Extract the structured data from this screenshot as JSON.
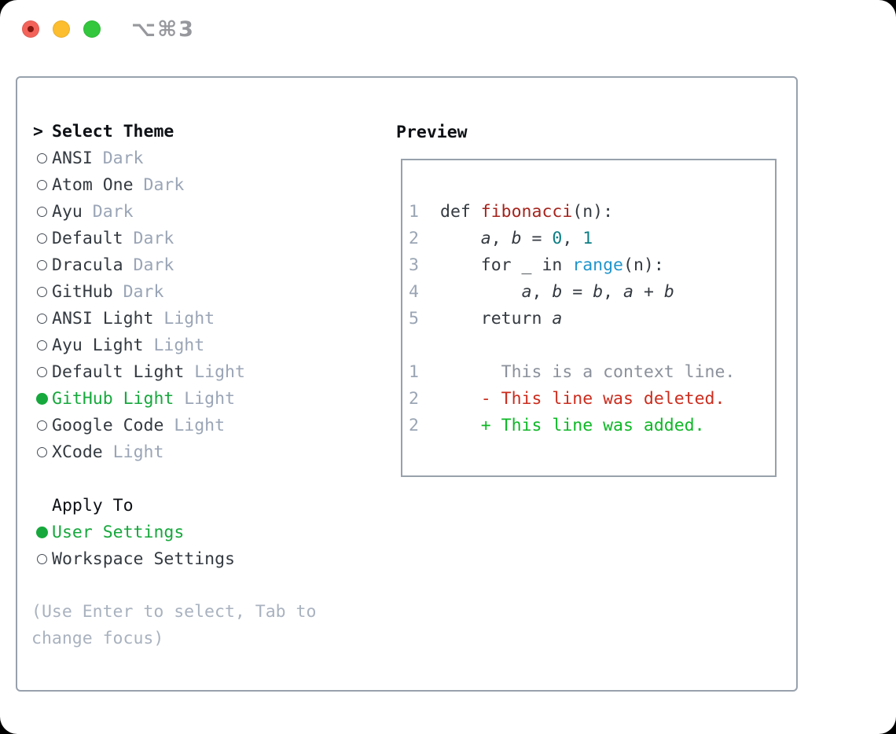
{
  "window": {
    "shortcut": "⌥⌘3"
  },
  "theme_picker": {
    "header": {
      "prompt": ">",
      "label": "Select Theme"
    },
    "themes": [
      {
        "name": "ANSI",
        "tag": "Dark",
        "selected": false
      },
      {
        "name": "Atom One",
        "tag": "Dark",
        "selected": false
      },
      {
        "name": "Ayu",
        "tag": "Dark",
        "selected": false
      },
      {
        "name": "Default",
        "tag": "Dark",
        "selected": false
      },
      {
        "name": "Dracula",
        "tag": "Dark",
        "selected": false
      },
      {
        "name": "GitHub",
        "tag": "Dark",
        "selected": false
      },
      {
        "name": "ANSI Light",
        "tag": "Light",
        "selected": false
      },
      {
        "name": "Ayu Light",
        "tag": "Light",
        "selected": false
      },
      {
        "name": "Default Light",
        "tag": "Light",
        "selected": false
      },
      {
        "name": "GitHub Light",
        "tag": "Light",
        "selected": true
      },
      {
        "name": "Google Code",
        "tag": "Light",
        "selected": false
      },
      {
        "name": "XCode",
        "tag": "Light",
        "selected": false
      }
    ],
    "apply_to": {
      "label": "Apply To",
      "options": [
        {
          "name": "User Settings",
          "selected": true
        },
        {
          "name": "Workspace Settings",
          "selected": false
        }
      ]
    },
    "hint": "(Use Enter to select, Tab to change focus)"
  },
  "preview": {
    "label": "Preview",
    "lines": [
      {
        "n": "1",
        "segs": [
          [
            "p",
            "def "
          ],
          [
            "fn",
            "fibonacci"
          ],
          [
            "p",
            "(n):"
          ]
        ]
      },
      {
        "n": "2",
        "segs": [
          [
            "p",
            "    "
          ],
          [
            "v",
            "a"
          ],
          [
            "p",
            ", "
          ],
          [
            "v",
            "b"
          ],
          [
            "p",
            " = "
          ],
          [
            "num",
            "0"
          ],
          [
            "p",
            ", "
          ],
          [
            "num",
            "1"
          ]
        ]
      },
      {
        "n": "3",
        "segs": [
          [
            "p",
            "    for _ in "
          ],
          [
            "call",
            "range"
          ],
          [
            "p",
            "(n):"
          ]
        ]
      },
      {
        "n": "4",
        "segs": [
          [
            "p",
            "        "
          ],
          [
            "v",
            "a"
          ],
          [
            "p",
            ", "
          ],
          [
            "v",
            "b"
          ],
          [
            "p",
            " = "
          ],
          [
            "v",
            "b"
          ],
          [
            "p",
            ", "
          ],
          [
            "v",
            "a"
          ],
          [
            "p",
            " + "
          ],
          [
            "v",
            "b"
          ]
        ]
      },
      {
        "n": "5",
        "segs": [
          [
            "p",
            "    return "
          ],
          [
            "v",
            "a"
          ]
        ]
      },
      {
        "n": "",
        "segs": []
      },
      {
        "n": "1",
        "segs": [
          [
            "ctx",
            "      This is a context line."
          ]
        ]
      },
      {
        "n": "2",
        "segs": [
          [
            "del",
            "    - This line was deleted."
          ]
        ]
      },
      {
        "n": "2",
        "segs": [
          [
            "add",
            "    + This line was added."
          ]
        ]
      }
    ]
  },
  "colors": {
    "c-border": "#98a1ac",
    "c-text": "#343a41",
    "c-black": "#0d1014",
    "c-tag": "#9aa5b6",
    "c-hint": "#a9b2bf",
    "c-green": "#16a83c",
    "c-ln": "#9aa5b4",
    "c-fn": "#a5241d",
    "c-num": "#0d7e85",
    "c-call": "#2196cd",
    "c-ctx": "#8b919b",
    "c-del": "#cb2c1d",
    "c-add": "#0eb826",
    "c-titlebar": "#97989d",
    "c-red-light": "#f4635a",
    "c-red-dot": "#84170f",
    "c-yellow": "#fcbd2e",
    "c-green-light": "#32c73c"
  }
}
